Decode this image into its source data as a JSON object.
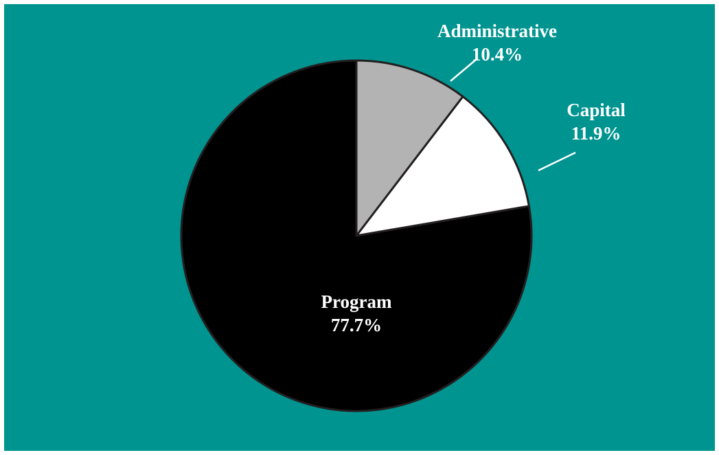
{
  "page": {
    "background_color": "#009490"
  },
  "chart_data": {
    "type": "pie",
    "title": "",
    "start_angle_deg": 0,
    "direction": "clockwise",
    "slices": [
      {
        "label": "Administrative",
        "value": 10.4,
        "value_label": "10.4%",
        "color": "#b3b3b3",
        "label_color": "#ffffff",
        "label_placement": "outside-leader"
      },
      {
        "label": "Capital",
        "value": 11.9,
        "value_label": "11.9%",
        "color": "#ffffff",
        "label_color": "#ffffff",
        "label_placement": "outside-leader"
      },
      {
        "label": "Program",
        "value": 77.7,
        "value_label": "77.7%",
        "color": "#000000",
        "label_color": "#ffffff",
        "label_placement": "inside"
      }
    ],
    "legend": "none"
  }
}
